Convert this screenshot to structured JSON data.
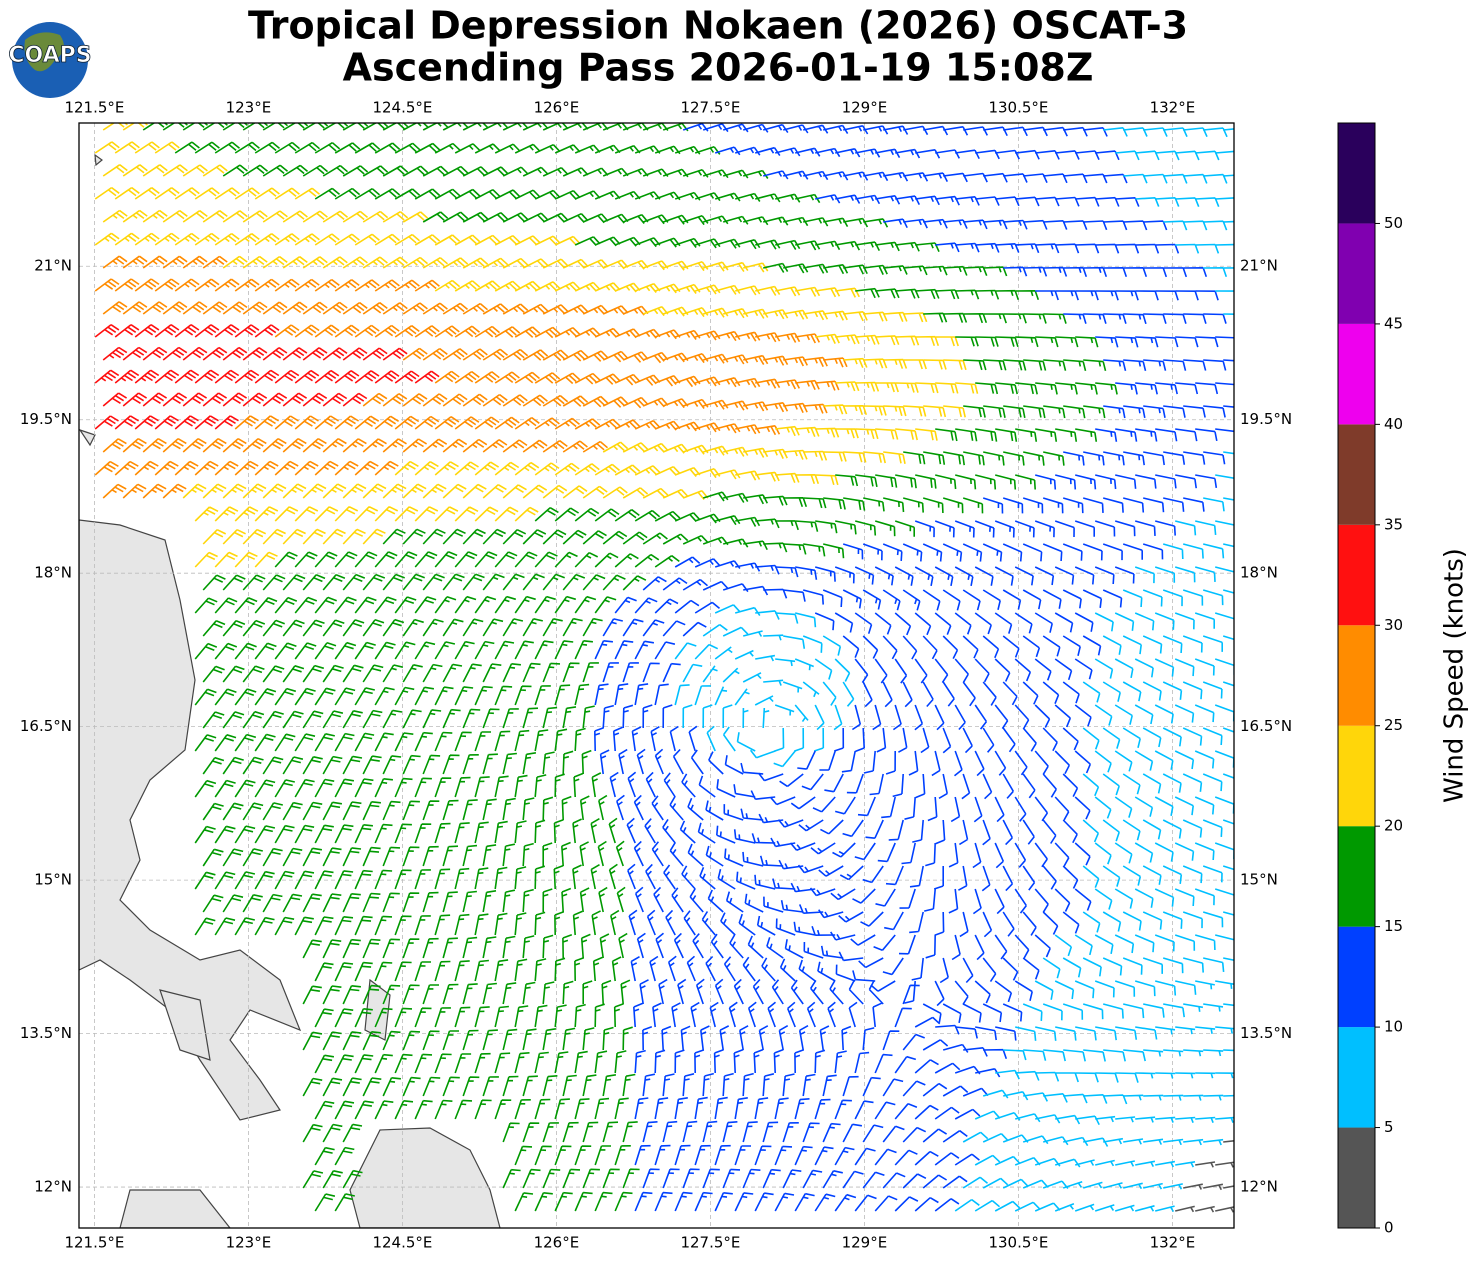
{
  "logo": "COAPS",
  "title_lines": [
    "Tropical Depression Nokaen (2026) OSCAT-3",
    "Ascending Pass 2026-01-19 15:08Z"
  ],
  "map": {
    "xlim": [
      121.35,
      132.6
    ],
    "ylim": [
      11.6,
      22.4
    ],
    "xticks": [
      {
        "value": 121.5,
        "label": "121.5°E"
      },
      {
        "value": 123,
        "label": "123°E"
      },
      {
        "value": 124.5,
        "label": "124.5°E"
      },
      {
        "value": 126,
        "label": "126°E"
      },
      {
        "value": 127.5,
        "label": "127.5°E"
      },
      {
        "value": 129,
        "label": "129°E"
      },
      {
        "value": 130.5,
        "label": "130.5°E"
      },
      {
        "value": 132,
        "label": "132°E"
      }
    ],
    "yticks": [
      {
        "value": 12,
        "label": "12°N"
      },
      {
        "value": 13.5,
        "label": "13.5°N"
      },
      {
        "value": 15,
        "label": "15°N"
      },
      {
        "value": 16.5,
        "label": "16.5°N"
      },
      {
        "value": 18,
        "label": "18°N"
      },
      {
        "value": 19.5,
        "label": "19.5°N"
      },
      {
        "value": 21,
        "label": "21°N"
      }
    ],
    "grid": true
  },
  "colorbar": {
    "label": "Wind Speed (knots)",
    "ylim": [
      0,
      55
    ],
    "yticks": [
      0,
      5,
      10,
      15,
      20,
      25,
      30,
      35,
      40,
      45,
      50
    ],
    "colors": [
      "#555555",
      "#00bfff",
      "#0040ff",
      "#009900",
      "#ffd60a",
      "#ff8c00",
      "#ff1010",
      "#7f3b2a",
      "#ee00ee",
      "#8000b0",
      "#2a005c"
    ]
  }
}
